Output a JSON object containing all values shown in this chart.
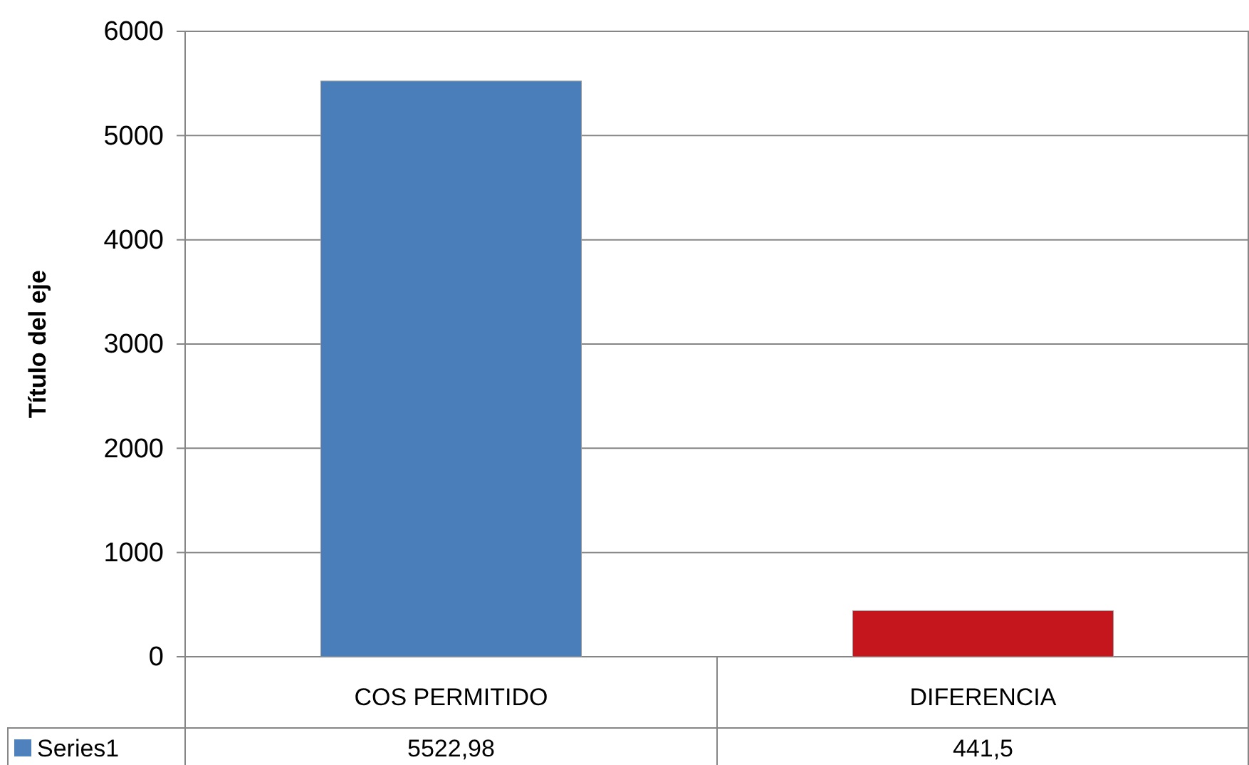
{
  "chart_data": {
    "type": "bar",
    "ylabel": "Título del eje",
    "categories": [
      "COS PERMITIDO",
      "DIFERENCIA"
    ],
    "series": [
      {
        "name": "Series1",
        "color": "#4f81bd",
        "colors": [
          "#4a7ebb",
          "#c4161c"
        ],
        "values": [
          5522.98,
          441.5
        ],
        "value_labels": [
          "5522,98",
          "441,5"
        ]
      }
    ],
    "ylim": [
      0,
      6000
    ],
    "yticks": [
      0,
      1000,
      2000,
      3000,
      4000,
      5000,
      6000
    ],
    "grid": "y",
    "legend": "bottom"
  }
}
